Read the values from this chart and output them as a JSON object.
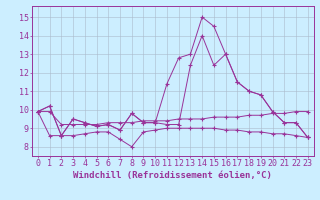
{
  "background_color": "#cceeff",
  "grid_color": "#aabbcc",
  "line_color": "#993399",
  "xlabel": "Windchill (Refroidissement éolien,°C)",
  "xlabel_fontsize": 6.5,
  "tick_fontsize": 6.0,
  "ylim": [
    7.5,
    15.6
  ],
  "xlim": [
    -0.5,
    23.5
  ],
  "yticks": [
    8,
    9,
    10,
    11,
    12,
    13,
    14,
    15
  ],
  "xticks": [
    0,
    1,
    2,
    3,
    4,
    5,
    6,
    7,
    8,
    9,
    10,
    11,
    12,
    13,
    14,
    15,
    16,
    17,
    18,
    19,
    20,
    21,
    22,
    23
  ],
  "lines": [
    {
      "x": [
        0,
        1,
        2,
        3,
        4,
        5,
        6,
        7,
        8,
        9,
        10,
        11,
        12,
        13,
        14,
        15,
        16,
        17,
        18,
        19,
        20,
        21,
        22,
        23
      ],
      "y": [
        9.9,
        10.2,
        8.6,
        9.5,
        9.3,
        9.1,
        9.2,
        8.9,
        9.8,
        9.3,
        9.3,
        11.4,
        12.8,
        13.0,
        15.0,
        14.5,
        13.0,
        11.5,
        11.0,
        10.8,
        9.9,
        9.3,
        9.3,
        8.5
      ]
    },
    {
      "x": [
        0,
        1,
        2,
        3,
        4,
        5,
        6,
        7,
        8,
        9,
        10,
        11,
        12,
        13,
        14,
        15,
        16,
        17,
        18,
        19,
        20,
        21,
        22,
        23
      ],
      "y": [
        9.9,
        10.2,
        8.6,
        9.5,
        9.3,
        9.1,
        9.2,
        8.9,
        9.8,
        9.3,
        9.3,
        9.2,
        9.2,
        12.4,
        14.0,
        12.4,
        13.0,
        11.5,
        11.0,
        10.8,
        9.9,
        9.3,
        9.3,
        8.5
      ]
    },
    {
      "x": [
        0,
        1,
        2,
        3,
        4,
        5,
        6,
        7,
        8,
        9,
        10,
        11,
        12,
        13,
        14,
        15,
        16,
        17,
        18,
        19,
        20,
        21,
        22,
        23
      ],
      "y": [
        9.9,
        9.9,
        9.2,
        9.2,
        9.2,
        9.2,
        9.3,
        9.3,
        9.3,
        9.4,
        9.4,
        9.4,
        9.5,
        9.5,
        9.5,
        9.6,
        9.6,
        9.6,
        9.7,
        9.7,
        9.8,
        9.8,
        9.9,
        9.9
      ]
    },
    {
      "x": [
        0,
        1,
        2,
        3,
        4,
        5,
        6,
        7,
        8,
        9,
        10,
        11,
        12,
        13,
        14,
        15,
        16,
        17,
        18,
        19,
        20,
        21,
        22,
        23
      ],
      "y": [
        9.9,
        8.6,
        8.6,
        8.6,
        8.7,
        8.8,
        8.8,
        8.4,
        8.0,
        8.8,
        8.9,
        9.0,
        9.0,
        9.0,
        9.0,
        9.0,
        8.9,
        8.9,
        8.8,
        8.8,
        8.7,
        8.7,
        8.6,
        8.5
      ]
    }
  ]
}
